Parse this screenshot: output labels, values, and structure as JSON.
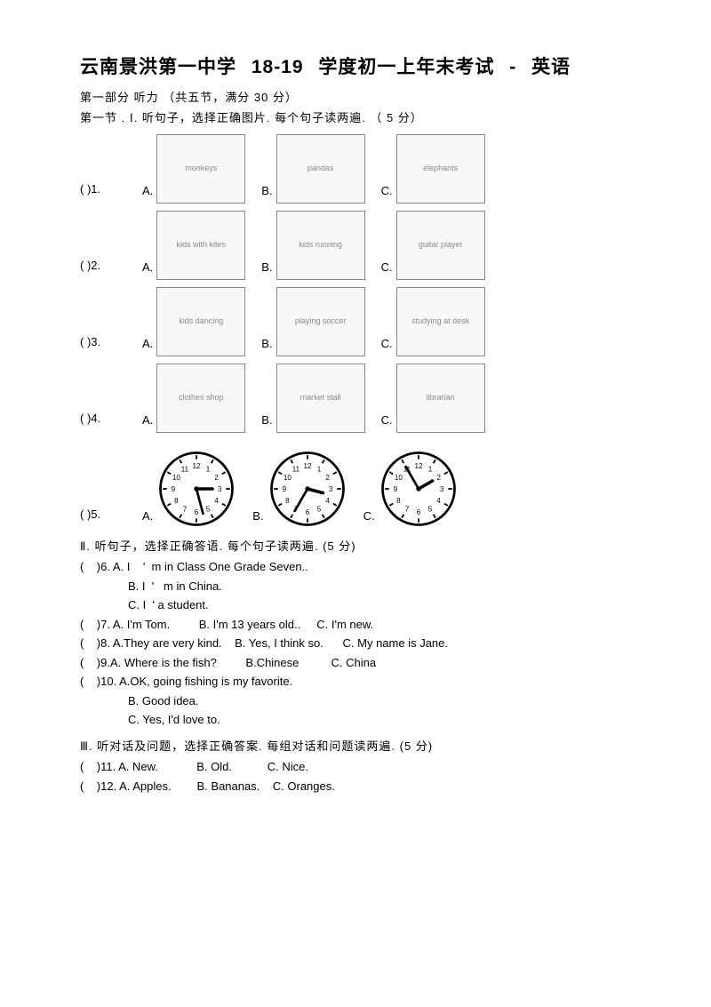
{
  "title": "云南景洪第一中学   18-19    学度初一上年末考试  - 英语",
  "part1_heading": "第一部分    听力   （共五节，满分    30 分）",
  "section1_heading": "第一节 .  Ⅰ. 听句子，选择正确图片.  每个句子读两遍.  （      5 分）",
  "img_questions": [
    {
      "num": "(    )1.",
      "options": [
        {
          "label": "A.",
          "desc": "monkeys"
        },
        {
          "label": "B.",
          "desc": "pandas"
        },
        {
          "label": "C.",
          "desc": "elephants"
        }
      ]
    },
    {
      "num": "(    )2.",
      "options": [
        {
          "label": "A.",
          "desc": "kids with kites"
        },
        {
          "label": "B.",
          "desc": "kids running"
        },
        {
          "label": "C.",
          "desc": "guitar player"
        }
      ]
    },
    {
      "num": "(    )3.",
      "options": [
        {
          "label": "A.",
          "desc": "kids dancing"
        },
        {
          "label": "B.",
          "desc": "playing soccer"
        },
        {
          "label": "C.",
          "desc": "studying at desk"
        }
      ]
    },
    {
      "num": "(    )4.",
      "options": [
        {
          "label": "A.",
          "desc": "clothes shop"
        },
        {
          "label": "B.",
          "desc": "market stall"
        },
        {
          "label": "C.",
          "desc": "librarian"
        }
      ]
    }
  ],
  "clock_question": {
    "num": "(    )5.",
    "options": [
      {
        "label": "A.",
        "hour_angle": 90,
        "minute_angle": 165
      },
      {
        "label": "B.",
        "hour_angle": 105,
        "minute_angle": 210
      },
      {
        "label": "C.",
        "hour_angle": 60,
        "minute_angle": -30
      }
    ],
    "numerals": [
      "12",
      "1",
      "2",
      "3",
      "4",
      "5",
      "6",
      "7",
      "8",
      "9",
      "10",
      "11"
    ]
  },
  "section2_heading": "Ⅱ. 听句子，选择正确答语.  每个句子读两遍.          (5 分)",
  "q6": {
    "prefix": "(    )6.",
    "a": "A. I    '  m in Class One Grade Seven..",
    "b": "B. I  '   m in China.",
    "c": "C. I  ' a student."
  },
  "q7": "(    )7. A. I'm Tom.         B. I'm 13 years old..     C. I'm new.",
  "q8": "(    )8. A.They are very kind.    B. Yes, I think so.      C. My name is Jane.",
  "q9": "(    )9.A. Where is the fish?         B.Chinese          C. China",
  "q10": {
    "prefix": "(    )10.",
    "a": "A.OK, going fishing is my favorite.",
    "b": "B. Good idea.",
    "c": "C. Yes, I'd love to."
  },
  "section3_heading": "Ⅲ. 听对话及问题，选择正确答案.  每组对话和问题读两遍.           (5 分)",
  "q11": "(    )11. A. New.            B. Old.           C. Nice.",
  "q12": "(    )12. A. Apples.        B. Bananas.    C. Oranges."
}
